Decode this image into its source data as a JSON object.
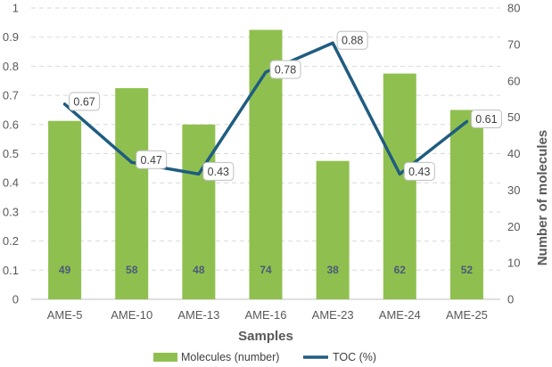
{
  "chart_data": {
    "type": "bar+line",
    "title": "",
    "xlabel": "Samples",
    "ylabel_left": "",
    "ylabel_right": "Number of molecules",
    "categories": [
      "AME-5",
      "AME-10",
      "AME-13",
      "AME-16",
      "AME-23",
      "AME-24",
      "AME-25"
    ],
    "y_left_ticks": [
      "0",
      "0.1",
      "0.2",
      "0.3",
      "0.4",
      "0.5",
      "0.6",
      "0.7",
      "0.8",
      "0.9",
      "1"
    ],
    "y_right_ticks": [
      "0",
      "10",
      "20",
      "30",
      "40",
      "50",
      "60",
      "70",
      "80"
    ],
    "ylim_left": [
      0,
      1
    ],
    "ylim_right": [
      0,
      80
    ],
    "grid": true,
    "legend_position": "bottom",
    "series": [
      {
        "name": "Molecules (number)",
        "type": "bar",
        "axis": "right",
        "color": "#8fc04f",
        "values": [
          49,
          58,
          48,
          74,
          38,
          62,
          52
        ],
        "labels": [
          "49",
          "58",
          "48",
          "74",
          "38",
          "62",
          "52"
        ]
      },
      {
        "name": "TOC (%)",
        "type": "line",
        "axis": "left",
        "color": "#1f5c80",
        "values": [
          0.67,
          0.47,
          0.43,
          0.78,
          0.88,
          0.43,
          0.61
        ],
        "labels": [
          "0.67",
          "0.47",
          "0.43",
          "0.78",
          "0.88",
          "0.43",
          "0.61"
        ]
      }
    ]
  }
}
